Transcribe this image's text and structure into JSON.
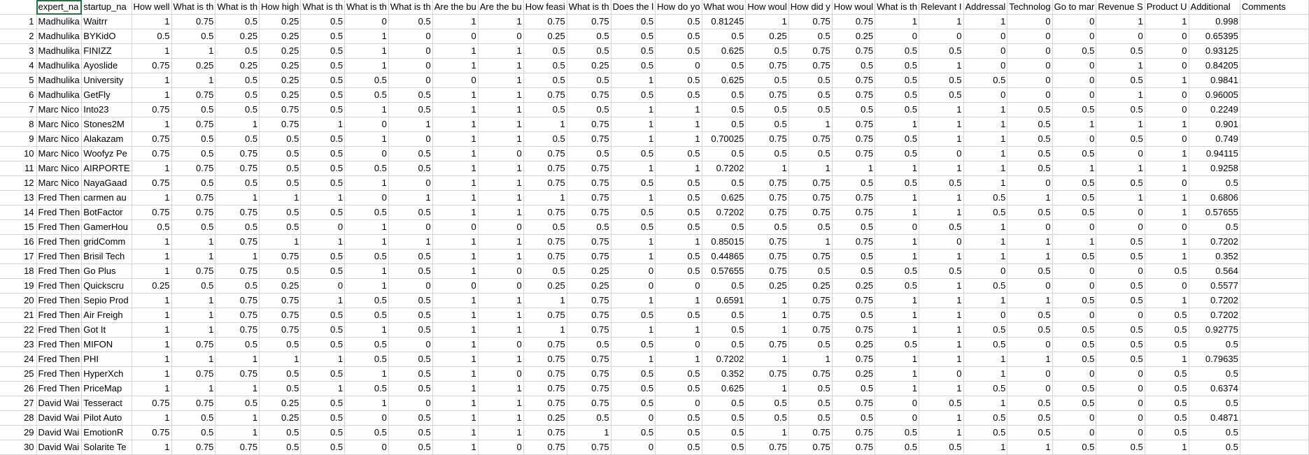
{
  "sheet": {
    "headers": [
      "expert_na",
      "startup_na",
      "How well",
      "What is th",
      "What is th",
      "How high",
      "What is th",
      "What is th",
      "What is th",
      "Are the bu",
      "Are the bu",
      "How feasi",
      "What is th",
      "Does the l",
      "How do yo",
      "What wou",
      "How woul",
      "How did y",
      "How woul",
      "What is th",
      "Relevant I",
      "Addressal",
      "Technolog",
      "Go to mar",
      "Revenue S",
      "Product U",
      "Additional",
      "Comments"
    ],
    "rows": [
      {
        "n": "1",
        "cells": [
          "Madhulika",
          "Waitrr",
          "1",
          "0.75",
          "0.5",
          "0.25",
          "0.5",
          "0",
          "0.5",
          "1",
          "1",
          "0.75",
          "0.75",
          "0.5",
          "0.5",
          "0.81245",
          "1",
          "0.75",
          "0.75",
          "1",
          "1",
          "1",
          "0",
          "0",
          "1",
          "1",
          "0.998",
          ""
        ]
      },
      {
        "n": "2",
        "cells": [
          "Madhulika",
          "BYKidO",
          "0.5",
          "0.5",
          "0.25",
          "0.25",
          "0.5",
          "1",
          "0",
          "0",
          "0",
          "0.25",
          "0.5",
          "0.5",
          "0.5",
          "0.5",
          "0.25",
          "0.5",
          "0.25",
          "0",
          "0",
          "0",
          "0",
          "0",
          "0",
          "0",
          "0.65395",
          ""
        ]
      },
      {
        "n": "3",
        "cells": [
          "Madhulika",
          "FINIZZ",
          "1",
          "1",
          "0.5",
          "0.25",
          "0.5",
          "1",
          "0",
          "1",
          "1",
          "0.5",
          "0.5",
          "0.5",
          "0.5",
          "0.625",
          "0.5",
          "0.75",
          "0.75",
          "0.5",
          "0.5",
          "0",
          "0",
          "0.5",
          "0.5",
          "0",
          "0.93125",
          ""
        ]
      },
      {
        "n": "4",
        "cells": [
          "Madhulika",
          "Ayoslide",
          "0.75",
          "0.25",
          "0.25",
          "0.25",
          "0.5",
          "1",
          "0",
          "1",
          "1",
          "0.5",
          "0.25",
          "0.5",
          "0",
          "0.5",
          "0.75",
          "0.75",
          "0.5",
          "0.5",
          "1",
          "0",
          "0",
          "0",
          "1",
          "0",
          "0.84205",
          ""
        ]
      },
      {
        "n": "5",
        "cells": [
          "Madhulika",
          "University",
          "1",
          "1",
          "0.5",
          "0.25",
          "0.5",
          "0.5",
          "0",
          "0",
          "1",
          "0.5",
          "0.5",
          "1",
          "0.5",
          "0.625",
          "0.5",
          "0.5",
          "0.75",
          "0.5",
          "0.5",
          "0.5",
          "0",
          "0",
          "0.5",
          "1",
          "0.9841",
          ""
        ]
      },
      {
        "n": "6",
        "cells": [
          "Madhulika",
          "GetFly",
          "1",
          "0.75",
          "0.5",
          "0.25",
          "0.5",
          "0.5",
          "0.5",
          "1",
          "1",
          "0.75",
          "0.75",
          "0.5",
          "0.5",
          "0.5",
          "0.75",
          "0.5",
          "0.75",
          "0.5",
          "0.5",
          "0",
          "0",
          "0",
          "1",
          "0",
          "0.96005",
          ""
        ]
      },
      {
        "n": "7",
        "cells": [
          "Marc Nico",
          "Into23",
          "0.75",
          "0.5",
          "0.5",
          "0.75",
          "0.5",
          "1",
          "0.5",
          "1",
          "1",
          "0.5",
          "0.5",
          "1",
          "1",
          "0.5",
          "0.5",
          "0.5",
          "0.5",
          "0.5",
          "1",
          "1",
          "0.5",
          "0.5",
          "0.5",
          "0",
          "0.2249",
          ""
        ]
      },
      {
        "n": "8",
        "cells": [
          "Marc Nico",
          "Stones2M",
          "1",
          "0.75",
          "1",
          "0.75",
          "1",
          "0",
          "1",
          "1",
          "1",
          "1",
          "0.75",
          "1",
          "1",
          "0.5",
          "0.5",
          "1",
          "0.75",
          "1",
          "1",
          "1",
          "0.5",
          "1",
          "1",
          "1",
          "0.901",
          ""
        ]
      },
      {
        "n": "9",
        "cells": [
          "Marc Nico",
          "Alakazam",
          "0.75",
          "0.5",
          "0.5",
          "0.5",
          "0.5",
          "1",
          "0",
          "1",
          "1",
          "0.5",
          "0.75",
          "1",
          "1",
          "0.70025",
          "0.75",
          "0.75",
          "0.75",
          "0.5",
          "1",
          "1",
          "0.5",
          "0",
          "0.5",
          "0",
          "0.749",
          ""
        ]
      },
      {
        "n": "10",
        "cells": [
          "Marc Nico",
          "Woofyz Pe",
          "0.75",
          "0.5",
          "0.75",
          "0.5",
          "0.5",
          "0",
          "0.5",
          "1",
          "0",
          "0.75",
          "0.5",
          "0.5",
          "0.5",
          "0.5",
          "0.5",
          "0.5",
          "0.75",
          "0.5",
          "0",
          "1",
          "0.5",
          "0.5",
          "0",
          "1",
          "0.94115",
          ""
        ]
      },
      {
        "n": "11",
        "cells": [
          "Marc Nico",
          "AIRPORTE",
          "1",
          "0.75",
          "0.75",
          "0.5",
          "0.5",
          "0.5",
          "0.5",
          "1",
          "1",
          "0.75",
          "0.75",
          "1",
          "1",
          "0.7202",
          "1",
          "1",
          "1",
          "1",
          "1",
          "1",
          "0.5",
          "1",
          "1",
          "1",
          "0.9258",
          ""
        ]
      },
      {
        "n": "12",
        "cells": [
          "Marc Nico",
          "NayaGaad",
          "0.75",
          "0.5",
          "0.5",
          "0.5",
          "0.5",
          "1",
          "0",
          "1",
          "1",
          "0.75",
          "0.75",
          "0.5",
          "0.5",
          "0.5",
          "0.75",
          "0.75",
          "0.5",
          "0.5",
          "0.5",
          "1",
          "0",
          "0.5",
          "0.5",
          "0",
          "0.5",
          ""
        ]
      },
      {
        "n": "13",
        "cells": [
          "Fred Then",
          "carmen au",
          "1",
          "0.75",
          "1",
          "1",
          "1",
          "0",
          "1",
          "1",
          "1",
          "1",
          "0.75",
          "1",
          "0.5",
          "0.625",
          "0.75",
          "0.75",
          "0.75",
          "1",
          "1",
          "0.5",
          "1",
          "0.5",
          "1",
          "1",
          "0.6806",
          ""
        ]
      },
      {
        "n": "14",
        "cells": [
          "Fred Then",
          "BotFactor",
          "0.75",
          "0.75",
          "0.75",
          "0.5",
          "0.5",
          "0.5",
          "0.5",
          "1",
          "1",
          "0.75",
          "0.75",
          "0.5",
          "0.5",
          "0.7202",
          "0.75",
          "0.75",
          "0.75",
          "1",
          "1",
          "0.5",
          "0.5",
          "0.5",
          "0",
          "1",
          "0.57655",
          ""
        ]
      },
      {
        "n": "15",
        "cells": [
          "Fred Then",
          "GamerHou",
          "0.5",
          "0.5",
          "0.5",
          "0.5",
          "0",
          "1",
          "0",
          "0",
          "0",
          "0.5",
          "0.5",
          "0.5",
          "0.5",
          "0.5",
          "0.5",
          "0.5",
          "0.5",
          "0",
          "0.5",
          "1",
          "0",
          "0",
          "0",
          "0",
          "0.5",
          ""
        ]
      },
      {
        "n": "16",
        "cells": [
          "Fred Then",
          "gridComm",
          "1",
          "1",
          "0.75",
          "1",
          "1",
          "1",
          "1",
          "1",
          "1",
          "0.75",
          "0.75",
          "1",
          "1",
          "0.85015",
          "0.75",
          "1",
          "0.75",
          "1",
          "0",
          "1",
          "1",
          "1",
          "0.5",
          "1",
          "0.7202",
          ""
        ]
      },
      {
        "n": "17",
        "cells": [
          "Fred Then",
          "Brisil Tech",
          "1",
          "1",
          "1",
          "0.75",
          "0.5",
          "0.5",
          "0.5",
          "1",
          "1",
          "0.75",
          "0.75",
          "1",
          "0.5",
          "0.44865",
          "0.75",
          "0.75",
          "0.5",
          "1",
          "1",
          "1",
          "1",
          "0.5",
          "0.5",
          "1",
          "0.352",
          ""
        ]
      },
      {
        "n": "18",
        "cells": [
          "Fred Then",
          "Go Plus",
          "1",
          "0.75",
          "0.75",
          "0.5",
          "0.5",
          "1",
          "0.5",
          "1",
          "0",
          "0.5",
          "0.25",
          "0",
          "0.5",
          "0.57655",
          "0.75",
          "0.5",
          "0.5",
          "0.5",
          "0.5",
          "0",
          "0.5",
          "0",
          "0",
          "0.5",
          "0.564",
          ""
        ]
      },
      {
        "n": "19",
        "cells": [
          "Fred Then",
          "Quickscru",
          "0.25",
          "0.5",
          "0.5",
          "0.25",
          "0",
          "1",
          "0",
          "0",
          "0",
          "0.25",
          "0.25",
          "0",
          "0",
          "0.5",
          "0.25",
          "0.25",
          "0.25",
          "0.5",
          "1",
          "0.5",
          "0",
          "0",
          "0.5",
          "0",
          "0.5577",
          ""
        ]
      },
      {
        "n": "20",
        "cells": [
          "Fred Then",
          "Sepio Prod",
          "1",
          "1",
          "0.75",
          "0.75",
          "1",
          "0.5",
          "0.5",
          "1",
          "1",
          "1",
          "0.75",
          "1",
          "1",
          "0.6591",
          "1",
          "0.75",
          "0.75",
          "1",
          "1",
          "1",
          "1",
          "0.5",
          "0.5",
          "1",
          "0.7202",
          ""
        ]
      },
      {
        "n": "21",
        "cells": [
          "Fred Then",
          "Air Freigh",
          "1",
          "1",
          "0.75",
          "0.75",
          "0.5",
          "0.5",
          "0.5",
          "1",
          "1",
          "0.75",
          "0.75",
          "0.5",
          "0.5",
          "0.5",
          "1",
          "0.75",
          "0.5",
          "1",
          "1",
          "0",
          "0.5",
          "0",
          "0",
          "0.5",
          "0.7202",
          ""
        ]
      },
      {
        "n": "22",
        "cells": [
          "Fred Then",
          "Got It",
          "1",
          "1",
          "0.75",
          "0.75",
          "0.5",
          "1",
          "0.5",
          "1",
          "1",
          "1",
          "0.75",
          "1",
          "1",
          "0.5",
          "1",
          "0.75",
          "0.75",
          "1",
          "1",
          "0.5",
          "0.5",
          "0.5",
          "0.5",
          "0.5",
          "0.92775",
          ""
        ]
      },
      {
        "n": "23",
        "cells": [
          "Fred Then",
          "MIFON",
          "1",
          "0.75",
          "0.5",
          "0.5",
          "0.5",
          "0.5",
          "0",
          "1",
          "0",
          "0.75",
          "0.5",
          "0.5",
          "0",
          "0.5",
          "0.75",
          "0.5",
          "0.25",
          "0.5",
          "1",
          "0.5",
          "0",
          "0.5",
          "0.5",
          "0.5",
          "0.5",
          ""
        ]
      },
      {
        "n": "24",
        "cells": [
          "Fred Then",
          "PHI",
          "1",
          "1",
          "1",
          "1",
          "1",
          "0.5",
          "0.5",
          "1",
          "1",
          "0.75",
          "0.75",
          "1",
          "1",
          "0.7202",
          "1",
          "1",
          "0.75",
          "1",
          "1",
          "1",
          "1",
          "0.5",
          "0.5",
          "1",
          "0.79635",
          ""
        ]
      },
      {
        "n": "25",
        "cells": [
          "Fred Then",
          "HyperXch",
          "1",
          "0.75",
          "0.75",
          "0.5",
          "0.5",
          "1",
          "0.5",
          "1",
          "0",
          "0.75",
          "0.75",
          "0.5",
          "0.5",
          "0.352",
          "0.75",
          "0.75",
          "0.25",
          "1",
          "0",
          "1",
          "0",
          "0",
          "0",
          "0.5",
          "0.5",
          ""
        ]
      },
      {
        "n": "26",
        "cells": [
          "Fred Then",
          "PriceMap",
          "1",
          "1",
          "1",
          "0.5",
          "1",
          "0.5",
          "0.5",
          "1",
          "1",
          "0.75",
          "0.75",
          "0.5",
          "0.5",
          "0.625",
          "1",
          "0.5",
          "0.5",
          "1",
          "1",
          "0.5",
          "0",
          "0.5",
          "0",
          "0.5",
          "0.6374",
          ""
        ]
      },
      {
        "n": "27",
        "cells": [
          "David Wai",
          "Tesseract",
          "0.75",
          "0.75",
          "0.5",
          "0.25",
          "0.5",
          "1",
          "0",
          "1",
          "1",
          "0.75",
          "0.75",
          "0.5",
          "0",
          "0.5",
          "0.5",
          "0.5",
          "0.75",
          "0",
          "0.5",
          "1",
          "0.5",
          "0.5",
          "0",
          "0.5",
          "0.5",
          ""
        ]
      },
      {
        "n": "28",
        "cells": [
          "David Wai",
          "Pilot Auto",
          "1",
          "0.5",
          "1",
          "0.25",
          "0.5",
          "0",
          "0.5",
          "1",
          "1",
          "0.25",
          "0.5",
          "0",
          "0.5",
          "0.5",
          "0.5",
          "0.5",
          "0.5",
          "0",
          "1",
          "0.5",
          "0.5",
          "0",
          "0",
          "0.5",
          "0.4871",
          ""
        ]
      },
      {
        "n": "29",
        "cells": [
          "David Wai",
          "EmotionR",
          "0.75",
          "0.5",
          "1",
          "0.5",
          "0.5",
          "0.5",
          "0.5",
          "1",
          "1",
          "0.75",
          "1",
          "0.5",
          "0.5",
          "0.5",
          "1",
          "0.75",
          "0.75",
          "0.5",
          "1",
          "0.5",
          "0.5",
          "0",
          "0",
          "0.5",
          "0.5",
          ""
        ]
      },
      {
        "n": "30",
        "cells": [
          "David Wai",
          "Solarite Te",
          "1",
          "0.75",
          "0.75",
          "0.5",
          "0.5",
          "0",
          "0.5",
          "1",
          "0",
          "0.75",
          "0.75",
          "0",
          "0.5",
          "0.5",
          "0.75",
          "0.75",
          "0.75",
          "0.5",
          "0.5",
          "1",
          "1",
          "0.5",
          "0.5",
          "1",
          "0.5",
          ""
        ]
      }
    ]
  }
}
